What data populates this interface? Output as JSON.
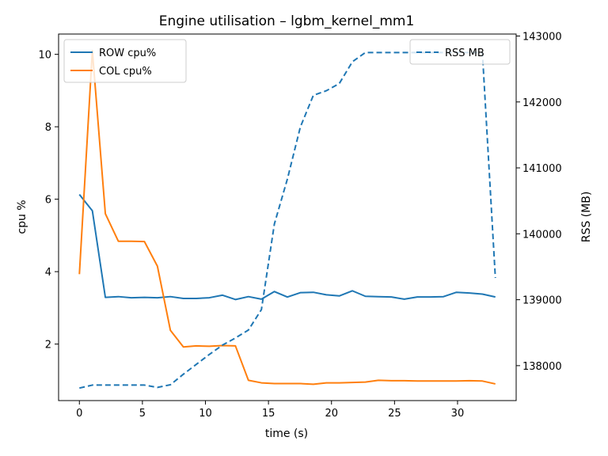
{
  "chart_data": {
    "type": "line",
    "title": "Engine utilisation – lgbm_kernel_mm1",
    "xlabel": "time (s)",
    "ylabel": "cpu %",
    "y2label": "RSS (MB)",
    "xlim": [
      -1.65,
      34.65
    ],
    "ylim": [
      0.44,
      10.56
    ],
    "y2lim": [
      137470,
      143030
    ],
    "xticks": [
      0,
      5,
      10,
      15,
      20,
      25,
      30
    ],
    "yticks": [
      2,
      4,
      6,
      8,
      10
    ],
    "y2ticks": [
      138000,
      139000,
      140000,
      141000,
      142000,
      143000
    ],
    "grid": false,
    "x": [
      0,
      1.03,
      2.06,
      3.09,
      4.12,
      5.16,
      6.19,
      7.22,
      8.25,
      9.28,
      10.31,
      11.34,
      12.38,
      13.41,
      14.44,
      15.47,
      16.5,
      17.53,
      18.56,
      19.59,
      20.62,
      21.66,
      22.69,
      23.72,
      24.75,
      25.78,
      26.81,
      27.84,
      28.88,
      29.91,
      30.94,
      31.97,
      33.0
    ],
    "series": [
      {
        "name": "ROW cpu%",
        "axis": "left",
        "color": "#1f77b4",
        "style": "solid",
        "values": [
          6.13,
          5.68,
          3.29,
          3.31,
          3.28,
          3.29,
          3.28,
          3.31,
          3.26,
          3.26,
          3.28,
          3.35,
          3.23,
          3.31,
          3.24,
          3.45,
          3.3,
          3.42,
          3.43,
          3.36,
          3.33,
          3.47,
          3.32,
          3.31,
          3.3,
          3.24,
          3.3,
          3.3,
          3.31,
          3.43,
          3.41,
          3.38,
          3.3
        ]
      },
      {
        "name": "COL cpu%",
        "axis": "left",
        "color": "#ff7f0e",
        "style": "solid",
        "values": [
          3.93,
          10.1,
          5.6,
          4.84,
          4.84,
          4.83,
          4.15,
          2.38,
          1.92,
          1.95,
          1.94,
          1.96,
          1.95,
          1.0,
          0.93,
          0.91,
          0.91,
          0.91,
          0.89,
          0.93,
          0.93,
          0.94,
          0.95,
          1.0,
          0.99,
          0.99,
          0.98,
          0.98,
          0.98,
          0.98,
          0.99,
          0.98,
          0.9
        ]
      },
      {
        "name": "RSS MB",
        "axis": "right",
        "color": "#1f77b4",
        "style": "dashed",
        "values": [
          137660,
          137705,
          137705,
          137705,
          137705,
          137705,
          137670,
          137710,
          137870,
          138020,
          138170,
          138310,
          138420,
          138540,
          138850,
          140150,
          140830,
          141620,
          142100,
          142170,
          142280,
          142610,
          142750,
          142750,
          142750,
          142750,
          142750,
          142750,
          142750,
          142750,
          142750,
          142750,
          139330
        ]
      }
    ],
    "legends": [
      {
        "placement": "upper-left",
        "entries": [
          "ROW cpu%",
          "COL cpu%"
        ]
      },
      {
        "placement": "upper-right",
        "entries": [
          "RSS MB"
        ]
      }
    ]
  }
}
